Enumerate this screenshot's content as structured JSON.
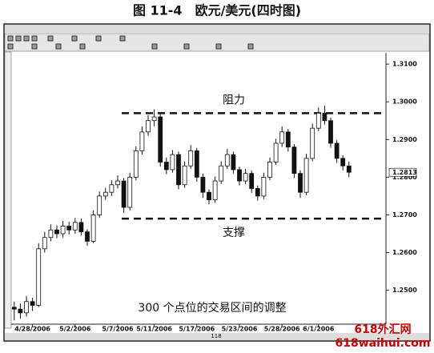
{
  "chart_data": {
    "type": "candlestick",
    "title": "图 11-4　欧元/美元(四时图)",
    "annotation": "300 个点位的交易区间的调整",
    "page_number": "118",
    "watermark": [
      "618外汇网",
      "618waihui.com"
    ],
    "categories": [
      null,
      null,
      null,
      "4/28/2006",
      null,
      null,
      null,
      null,
      null,
      null,
      "5/2/2006",
      null,
      null,
      null,
      null,
      null,
      null,
      "5/7/2006",
      null,
      null,
      null,
      null,
      null,
      "5/11/2006",
      null,
      null,
      null,
      null,
      null,
      null,
      "5/17/2006",
      null,
      null,
      null,
      null,
      null,
      null,
      "5/23/2006",
      null,
      null,
      null,
      null,
      null,
      null,
      "5/28/2006",
      null,
      null,
      null,
      null,
      null,
      "6/1/2006",
      null,
      null,
      null,
      null,
      null
    ],
    "open": [
      1.2455,
      1.245,
      1.244,
      1.247,
      1.246,
      1.261,
      1.264,
      1.266,
      1.265,
      1.267,
      1.266,
      1.268,
      1.2655,
      1.263,
      1.27,
      1.275,
      1.276,
      1.278,
      1.279,
      1.272,
      1.28,
      1.287,
      1.292,
      1.295,
      1.296,
      1.284,
      1.282,
      1.286,
      1.278,
      1.283,
      1.287,
      1.28,
      1.276,
      1.274,
      1.279,
      1.283,
      1.286,
      1.282,
      1.279,
      1.281,
      1.277,
      1.275,
      1.28,
      1.284,
      1.289,
      1.292,
      1.288,
      1.281,
      1.276,
      1.285,
      1.293,
      1.297,
      1.295,
      1.289,
      1.285,
      1.283
    ],
    "high": [
      1.247,
      1.2465,
      1.2485,
      1.248,
      1.2625,
      1.2655,
      1.2675,
      1.2672,
      1.2684,
      1.2682,
      1.2692,
      1.269,
      1.2662,
      1.2712,
      1.2762,
      1.2772,
      1.2792,
      1.2805,
      1.2798,
      1.2812,
      1.2882,
      1.2935,
      1.2965,
      1.298,
      1.2968,
      1.2852,
      1.2872,
      1.2868,
      1.2842,
      1.2885,
      1.2878,
      1.281,
      1.2768,
      1.2802,
      1.2842,
      1.2875,
      1.2868,
      1.2828,
      1.2822,
      1.2818,
      1.2778,
      1.2812,
      1.2852,
      1.2902,
      1.2935,
      1.2928,
      1.2888,
      1.2818,
      1.2862,
      1.2942,
      1.2985,
      1.299,
      1.2958,
      1.2898,
      1.2858,
      1.2842
    ],
    "low": [
      1.242,
      1.2425,
      1.243,
      1.2445,
      1.2455,
      1.26,
      1.263,
      1.2638,
      1.264,
      1.2648,
      1.265,
      1.2645,
      1.2618,
      1.2625,
      1.2692,
      1.274,
      1.275,
      1.277,
      1.2705,
      1.2712,
      1.2792,
      1.286,
      1.291,
      1.2935,
      1.2828,
      1.2808,
      1.2812,
      1.2768,
      1.2772,
      1.2822,
      1.2788,
      1.2745,
      1.2728,
      1.2732,
      1.2782,
      1.2822,
      1.281,
      1.2778,
      1.2782,
      1.2758,
      1.2738,
      1.2742,
      1.2792,
      1.2832,
      1.288,
      1.2868,
      1.2798,
      1.2745,
      1.2752,
      1.2842,
      1.2922,
      1.294,
      1.2878,
      1.2838,
      1.2818,
      1.28
    ],
    "close": [
      1.245,
      1.244,
      1.247,
      1.246,
      1.261,
      1.264,
      1.266,
      1.265,
      1.267,
      1.266,
      1.268,
      1.2655,
      1.263,
      1.27,
      1.275,
      1.276,
      1.278,
      1.279,
      1.272,
      1.28,
      1.287,
      1.292,
      1.295,
      1.296,
      1.284,
      1.282,
      1.286,
      1.278,
      1.283,
      1.287,
      1.28,
      1.276,
      1.274,
      1.279,
      1.283,
      1.286,
      1.282,
      1.279,
      1.281,
      1.277,
      1.275,
      1.28,
      1.284,
      1.289,
      1.292,
      1.288,
      1.281,
      1.276,
      1.285,
      1.293,
      1.297,
      1.295,
      1.289,
      1.285,
      1.283,
      1.2813
    ],
    "last_price": {
      "value": 1.2813,
      "label": "1.2813"
    },
    "reference_lines": [
      {
        "value": 1.297,
        "label": "阻力"
      },
      {
        "value": 1.269,
        "label": "支撑"
      }
    ],
    "ylim": [
      1.241,
      1.313
    ],
    "yticks": [
      {
        "value": 1.25,
        "label": "1.2500"
      },
      {
        "value": 1.26,
        "label": "1.2600"
      },
      {
        "value": 1.27,
        "label": "1.2700"
      },
      {
        "value": 1.28,
        "label": "1.2800"
      },
      {
        "value": 1.29,
        "label": "1.2900"
      },
      {
        "value": 1.3,
        "label": "1.3000"
      },
      {
        "value": 1.31,
        "label": "1.3100"
      }
    ],
    "up_color": "#ffffff",
    "down_color": "#111111"
  }
}
